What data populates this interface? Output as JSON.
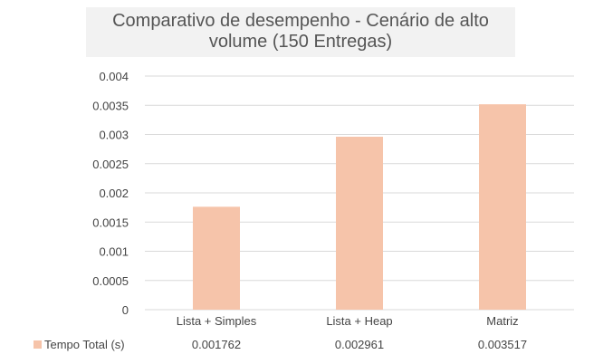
{
  "chart_data": {
    "type": "bar",
    "title": "Comparativo de desempenho - Cenário de alto volume (150 Entregas)",
    "categories": [
      "Lista + Simples",
      "Lista + Heap",
      "Matriz"
    ],
    "series": [
      {
        "name": "Tempo Total (s)",
        "values": [
          0.001762,
          0.002961,
          0.003517
        ],
        "value_labels": [
          "0.001762",
          "0.002961",
          "0.003517"
        ]
      }
    ],
    "y_ticks": [
      "0",
      "0.0005",
      "0.001",
      "0.0015",
      "0.002",
      "0.0025",
      "0.003",
      "0.0035",
      "0.004"
    ],
    "ylim": [
      0,
      0.004
    ],
    "grid": true,
    "legend_position": "bottom-left data table",
    "colors": {
      "bar": "#f6c4aa",
      "grid": "#d9d9d9",
      "text": "#444444"
    }
  }
}
